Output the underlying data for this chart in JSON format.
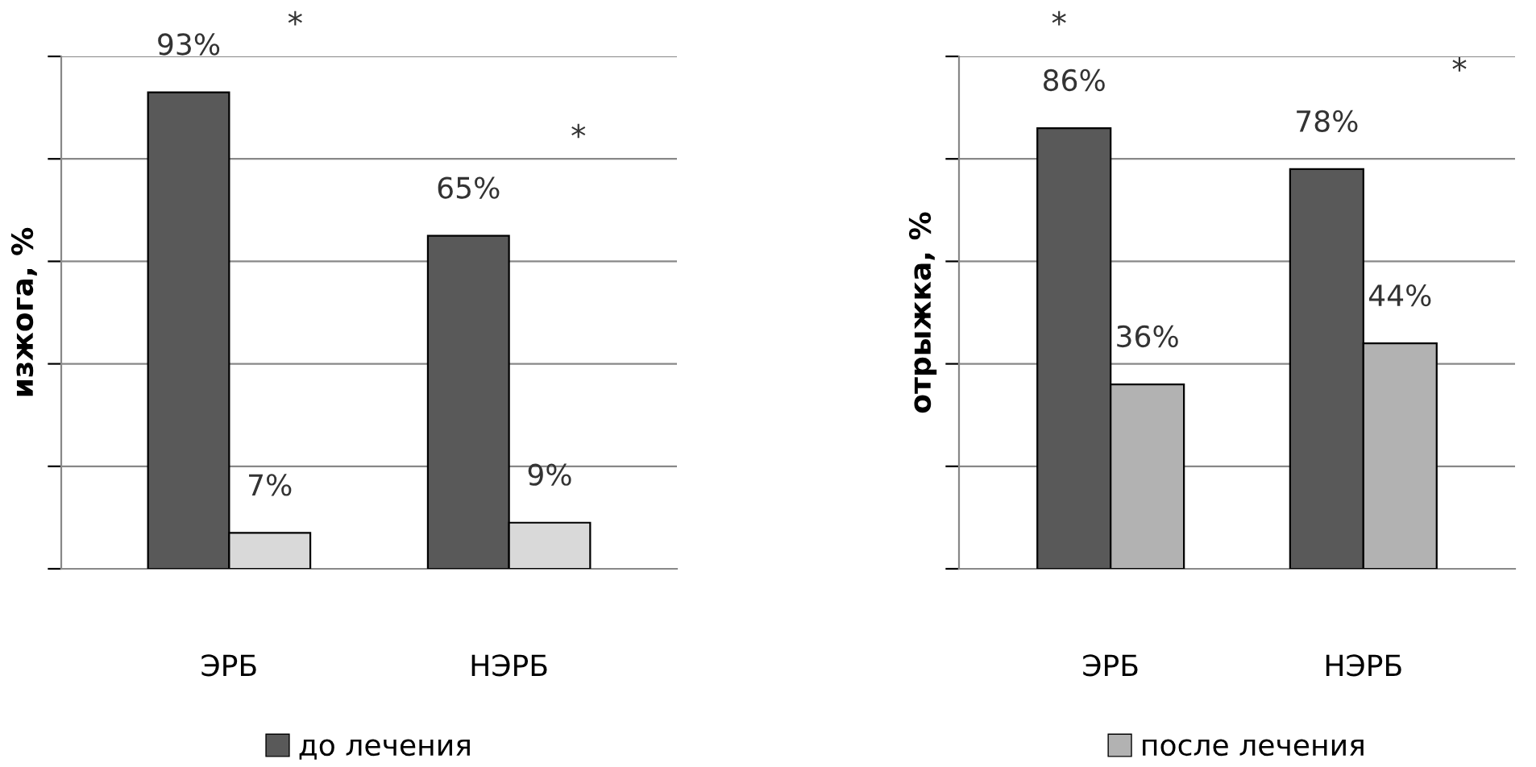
{
  "chart_data": [
    {
      "type": "bar",
      "ylabel": "изжога, %",
      "categories": [
        "ЭРБ",
        "НЭРБ"
      ],
      "series": [
        {
          "name": "до лечения",
          "color": "#595959",
          "values": [
            93,
            65
          ],
          "value_labels": [
            "93%",
            "65%"
          ]
        },
        {
          "color": "#d9d9d9",
          "values": [
            7,
            9
          ],
          "value_labels": [
            "7%",
            "9%"
          ]
        }
      ],
      "ylim": [
        0,
        100
      ],
      "yticks": [
        {
          "value": 0,
          "label": null
        },
        {
          "value": 20,
          "label": null
        },
        {
          "value": 40,
          "label": null
        },
        {
          "value": 60,
          "label": null
        },
        {
          "value": 80,
          "label": null
        },
        {
          "value": 100,
          "label": null
        }
      ],
      "tick_labels": "x",
      "grid": "y",
      "legend": "bottom",
      "annotations": [
        "*",
        "*"
      ]
    },
    {
      "type": "bar",
      "ylabel": "отрыжка, %",
      "categories": [
        "ЭРБ",
        "НЭРБ"
      ],
      "series": [
        {
          "color": "#595959",
          "values": [
            86,
            78
          ],
          "value_labels": [
            "86%",
            "78%"
          ]
        },
        {
          "name": "после лечения",
          "color": "#b2b2b2",
          "values": [
            36,
            44
          ],
          "value_labels": [
            "36%",
            "44%"
          ]
        }
      ],
      "ylim": [
        0,
        100
      ],
      "yticks": [
        {
          "value": 0,
          "label": null
        },
        {
          "value": 20,
          "label": null
        },
        {
          "value": 40,
          "label": null
        },
        {
          "value": 60,
          "label": null
        },
        {
          "value": 80,
          "label": null
        },
        {
          "value": 100,
          "label": null
        }
      ],
      "tick_labels": "x",
      "grid": "y",
      "legend": "bottom",
      "annotations": [
        "*",
        "*"
      ]
    }
  ]
}
